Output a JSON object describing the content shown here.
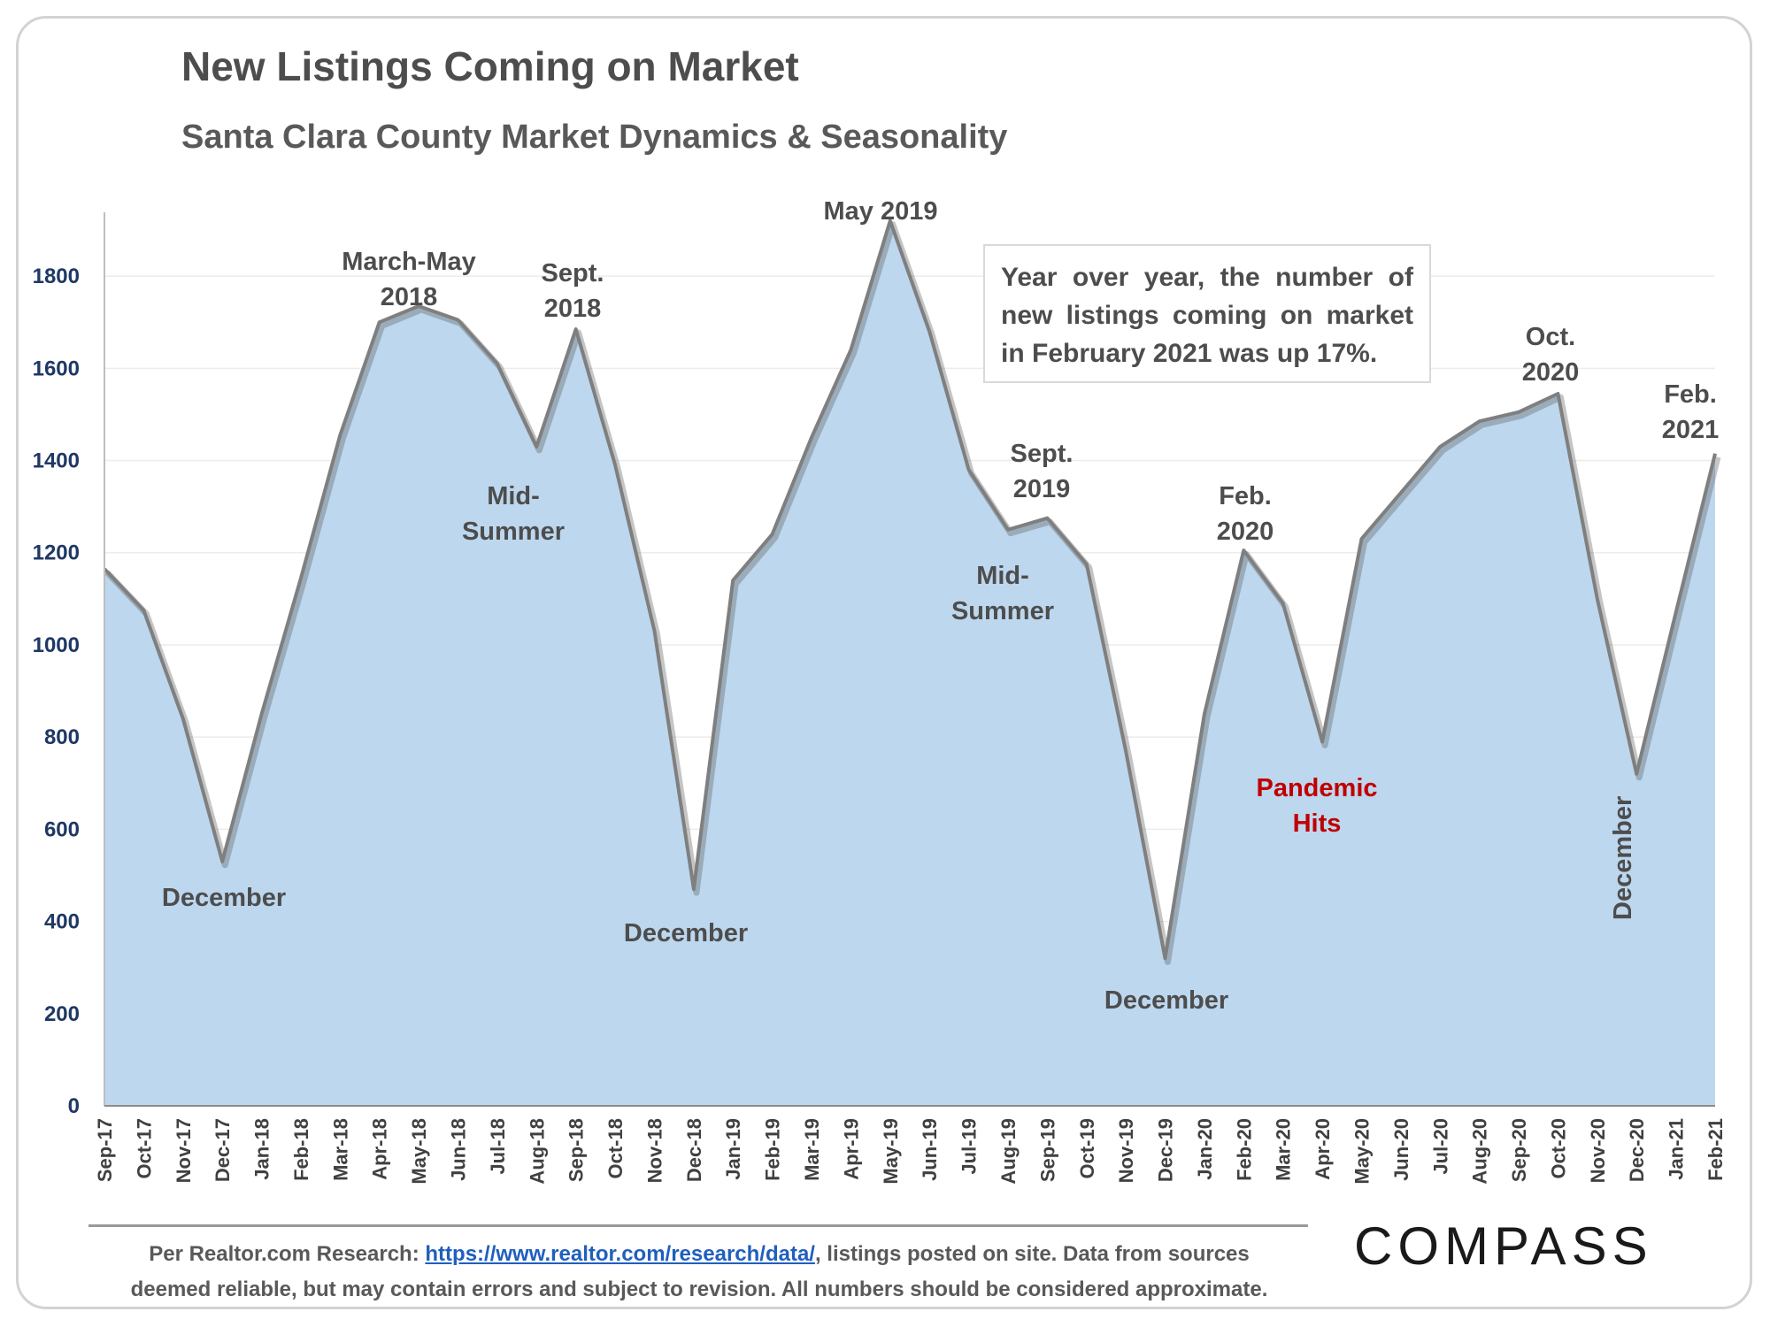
{
  "title": "New Listings Coming on Market",
  "subtitle": "Santa Clara County Market Dynamics & Seasonality",
  "callout": "Year over year, the number of new listings coming on market in February 2021 was up 17%.",
  "footer": {
    "prefix": "Per Realtor.com Research:",
    "link_text": "https://www.realtor.com/research/data/",
    "suffix": ", listings posted on site. Data from sources",
    "line2": "deemed reliable, but may contain errors and subject to revision. All numbers should be considered approximate."
  },
  "logo": "COMPASS",
  "colors": {
    "area_fill": "#bdd7ee",
    "line": "#7f7f7f",
    "annotation": "#4d4d4d",
    "pandemic": "#c00000",
    "y_ticks": "#1f3864"
  },
  "chart_data": {
    "type": "area",
    "title": "New Listings Coming on Market",
    "subtitle": "Santa Clara County Market Dynamics & Seasonality",
    "xlabel": "",
    "ylabel": "",
    "ylim": [
      0,
      1900
    ],
    "yticks": [
      0,
      200,
      400,
      600,
      800,
      1000,
      1200,
      1400,
      1600,
      1800
    ],
    "grid": true,
    "categories": [
      "Sep-17",
      "Oct-17",
      "Nov-17",
      "Dec-17",
      "Jan-18",
      "Feb-18",
      "Mar-18",
      "Apr-18",
      "May-18",
      "Jun-18",
      "Jul-18",
      "Aug-18",
      "Sep-18",
      "Oct-18",
      "Nov-18",
      "Dec-18",
      "Jan-19",
      "Feb-19",
      "Mar-19",
      "Apr-19",
      "May-19",
      "Jun-19",
      "Jul-19",
      "Aug-19",
      "Sep-19",
      "Oct-19",
      "Nov-19",
      "Dec-19",
      "Jan-20",
      "Feb-20",
      "Mar-20",
      "Apr-20",
      "May-20",
      "Jun-20",
      "Jul-20",
      "Aug-20",
      "Sep-20",
      "Oct-20",
      "Nov-20",
      "Dec-20",
      "Jan-21",
      "Feb-21"
    ],
    "series": [
      {
        "values": [
          1165,
          1075,
          840,
          530,
          850,
          1145,
          1455,
          1700,
          1735,
          1705,
          1610,
          1430,
          1685,
          1390,
          1030,
          470,
          1140,
          1240,
          1450,
          1640,
          1920,
          1680,
          1380,
          1250,
          1275,
          1175,
          770,
          320,
          850,
          1205,
          1090,
          790,
          1230,
          1330,
          1430,
          1485,
          1505,
          1545,
          1100,
          720,
          1070,
          1415
        ]
      }
    ],
    "annotations": [
      {
        "lines": [
          "March-May",
          "2018"
        ],
        "category": "May-18",
        "color": "default"
      },
      {
        "lines": [
          "Sept.",
          "2018"
        ],
        "category": "Sep-18",
        "color": "default"
      },
      {
        "lines": [
          "Mid-",
          "Summer"
        ],
        "category": "Aug-18",
        "color": "default"
      },
      {
        "lines": [
          "December"
        ],
        "category": "Dec-17",
        "color": "default"
      },
      {
        "lines": [
          "December"
        ],
        "category": "Dec-18",
        "color": "default"
      },
      {
        "lines": [
          "May 2019"
        ],
        "category": "May-19",
        "color": "default"
      },
      {
        "lines": [
          "Sept.",
          "2019"
        ],
        "category": "Sep-19",
        "color": "default"
      },
      {
        "lines": [
          "Mid-",
          "Summer"
        ],
        "category": "Aug-19",
        "color": "default"
      },
      {
        "lines": [
          "December"
        ],
        "category": "Dec-19",
        "color": "default"
      },
      {
        "lines": [
          "Feb.",
          "2020"
        ],
        "category": "Feb-20",
        "color": "default"
      },
      {
        "lines": [
          "Pandemic",
          "Hits"
        ],
        "category": "Apr-20",
        "color": "red"
      },
      {
        "lines": [
          "Oct.",
          "2020"
        ],
        "category": "Oct-20",
        "color": "default"
      },
      {
        "lines": [
          "December"
        ],
        "category": "Dec-20",
        "color": "default",
        "rotated": true
      },
      {
        "lines": [
          "Feb.",
          "2021"
        ],
        "category": "Feb-21",
        "color": "default"
      }
    ]
  }
}
